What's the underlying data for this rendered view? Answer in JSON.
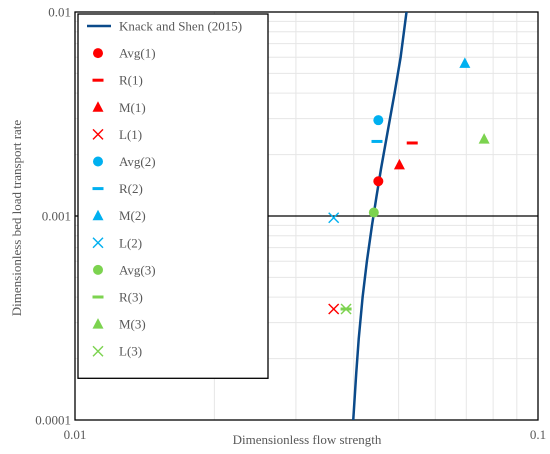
{
  "chart_data": {
    "type": "scatter",
    "xlabel": "Dimensionless flow strength",
    "ylabel": "Dimensionless bed load transport rate",
    "xscale": "log",
    "yscale": "log",
    "xlim": [
      0.01,
      0.1
    ],
    "ylim": [
      0.0001,
      0.01
    ],
    "x_ticks": [
      {
        "value": 0.01,
        "label": "0.01"
      },
      {
        "value": 0.1,
        "label": "0.1"
      }
    ],
    "y_ticks": [
      {
        "value": 0.0001,
        "label": "0.0001"
      },
      {
        "value": 0.001,
        "label": "0.001"
      },
      {
        "value": 0.01,
        "label": "0.01"
      }
    ],
    "grid": true,
    "reference_line_y": 0.001,
    "legend_position": "top-left",
    "curve": {
      "name": "Knack and Shen (2015)",
      "color": "#0b4a8a",
      "x": [
        0.0399,
        0.0405,
        0.041,
        0.0418,
        0.0427,
        0.0438,
        0.0448,
        0.0458,
        0.0475,
        0.049,
        0.0505,
        0.052
      ],
      "y": [
        0.0001,
        0.00017,
        0.00025,
        0.0004,
        0.0006,
        0.0009,
        0.00125,
        0.0017,
        0.0027,
        0.004,
        0.006,
        0.01
      ]
    },
    "series": [
      {
        "name": "Avg(1)",
        "marker": "circle",
        "color": "#ff0000",
        "x": 0.0452,
        "y": 0.00148
      },
      {
        "name": "R(1)",
        "marker": "dash",
        "color": "#ff0000",
        "x": 0.0535,
        "y": 0.00228
      },
      {
        "name": "M(1)",
        "marker": "triangle",
        "color": "#ff0000",
        "x": 0.0502,
        "y": 0.00178
      },
      {
        "name": "L(1)",
        "marker": "x",
        "color": "#ff0000",
        "x": 0.0362,
        "y": 0.00035
      },
      {
        "name": "Avg(2)",
        "marker": "circle",
        "color": "#00b0f0",
        "x": 0.0452,
        "y": 0.00295
      },
      {
        "name": "R(2)",
        "marker": "dash",
        "color": "#00b0f0",
        "x": 0.0449,
        "y": 0.00232
      },
      {
        "name": "M(2)",
        "marker": "triangle",
        "color": "#00b0f0",
        "x": 0.0695,
        "y": 0.0056
      },
      {
        "name": "L(2)",
        "marker": "x",
        "color": "#00b0f0",
        "x": 0.0362,
        "y": 0.00098
      },
      {
        "name": "Avg(3)",
        "marker": "circle",
        "color": "#7cd34f",
        "x": 0.0442,
        "y": 0.00104
      },
      {
        "name": "R(3)",
        "marker": "dash",
        "color": "#7cd34f",
        "x": 0.0385,
        "y": 0.00035
      },
      {
        "name": "M(3)",
        "marker": "triangle",
        "color": "#7cd34f",
        "x": 0.0765,
        "y": 0.00238
      },
      {
        "name": "L(3)",
        "marker": "x",
        "color": "#7cd34f",
        "x": 0.0385,
        "y": 0.00035
      }
    ]
  }
}
